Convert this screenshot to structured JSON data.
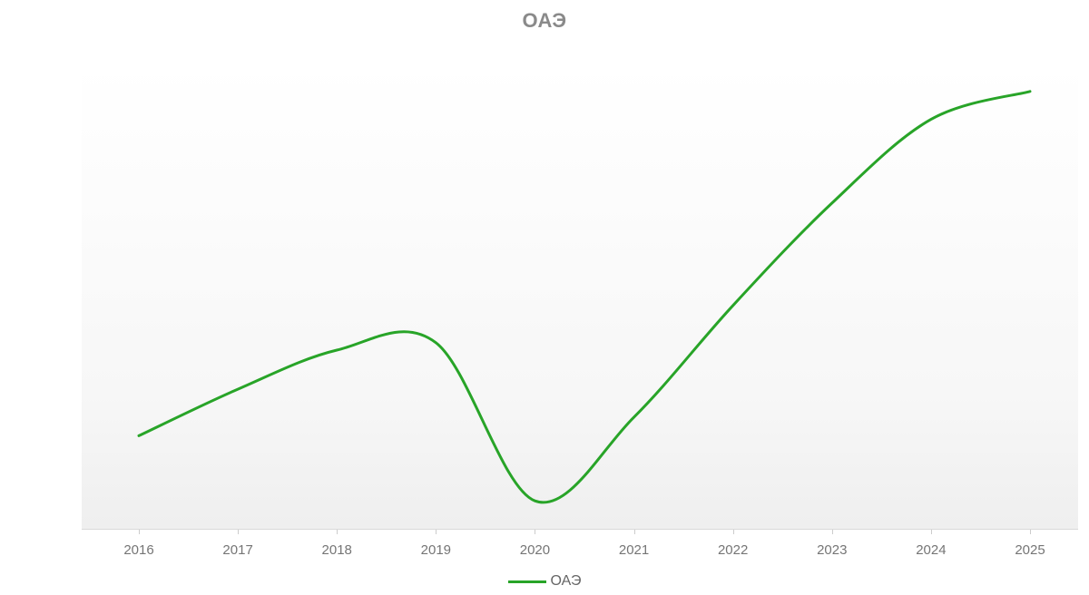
{
  "title": "ОАЭ",
  "colors": {
    "series": "#28a428",
    "title": "#8a8a8a",
    "axis_text": "#757575",
    "axis_line": "#d9d9d9",
    "tick": "#cccccc",
    "legend_text": "#666666"
  },
  "legend": {
    "items": [
      {
        "label": "ОАЭ",
        "color": "#28a428"
      }
    ]
  },
  "chart_data": {
    "type": "line",
    "title": "ОАЭ",
    "x": [
      2016,
      2017,
      2018,
      2019,
      2020,
      2021,
      2022,
      2023,
      2024,
      2025
    ],
    "series": [
      {
        "name": "ОАЭ",
        "color": "#28a428",
        "values": [
          500000,
          750000,
          960000,
          1000000,
          150000,
          600000,
          1200000,
          1750000,
          2200000,
          2350000
        ]
      }
    ],
    "xlabel": "",
    "ylabel": "",
    "ylim": [
      0,
      2500000
    ],
    "y_ticks": [
      0,
      500000,
      1000000,
      1500000,
      2000000,
      2500000
    ],
    "grid": false,
    "smooth": true,
    "legend_position": "bottom"
  }
}
